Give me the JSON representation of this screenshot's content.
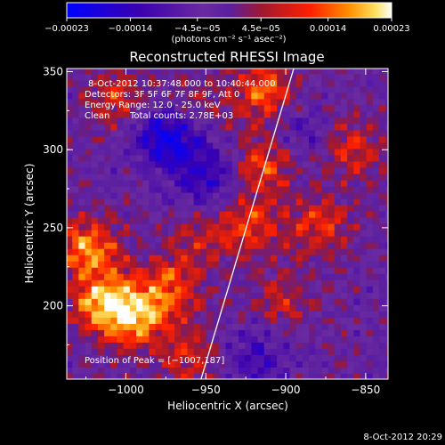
{
  "chart_data": {
    "type": "heatmap",
    "title": "Reconstructed RHESSI Image",
    "xlabel": "Heliocentric X (arcsec)",
    "ylabel": "Heliocentric Y (arcsec)",
    "xlim": [
      -1037,
      -836
    ],
    "ylim": [
      153,
      352
    ],
    "x_ticks": [
      -1000,
      -950,
      -900,
      -850
    ],
    "x_tick_labels": [
      "−1000",
      "−950",
      "−900",
      "−850"
    ],
    "y_ticks": [
      200,
      250,
      300,
      350
    ],
    "y_tick_labels": [
      "200",
      "250",
      "300",
      "350"
    ],
    "colorbar": {
      "min": -0.00023,
      "max": 0.00023,
      "ticks": [
        -0.00023,
        -0.00014,
        -4.5e-05,
        4.5e-05,
        0.00014,
        0.00023
      ],
      "tick_labels": [
        "−0.00023",
        "−0.00014",
        "−4.5e−05",
        "4.5e−05",
        "0.00014",
        "0.00023"
      ],
      "unit_label": "(photons cm⁻² s⁻¹ asec⁻²)"
    },
    "annotations": [
      "8-Oct-2012 10:37:48.000 to 10:40:44.000",
      "Detectors: 3F 5F 6F 7F 8F 9F, Att 0",
      "Energy Range: 12.0 - 25.0 keV",
      "Clean",
      "Total counts: 2.78E+03"
    ],
    "peak_label": "Position of Peak = [−1007,187]",
    "peak_position": [
      -1007,
      187
    ],
    "limb_line": [
      [
        -953,
        153
      ],
      [
        -895,
        352
      ]
    ],
    "hot_regions": [
      {
        "x": -1015,
        "y": 200,
        "value": 0.0002
      },
      {
        "x": -1025,
        "y": 235,
        "value": 0.00018
      },
      {
        "x": -995,
        "y": 190,
        "value": 0.00016
      },
      {
        "x": -975,
        "y": 210,
        "value": 0.00014
      },
      {
        "x": -1005,
        "y": 330,
        "value": 0.00012
      },
      {
        "x": -960,
        "y": 325,
        "value": 0.0001
      },
      {
        "x": -915,
        "y": 335,
        "value": 0.00016
      },
      {
        "x": -915,
        "y": 290,
        "value": 0.00015
      },
      {
        "x": -925,
        "y": 250,
        "value": 0.00013
      },
      {
        "x": -880,
        "y": 250,
        "value": 0.00012
      },
      {
        "x": -860,
        "y": 300,
        "value": 0.00011
      },
      {
        "x": -905,
        "y": 200,
        "value": 9e-05
      },
      {
        "x": -960,
        "y": 165,
        "value": 0.0001
      },
      {
        "x": -955,
        "y": 245,
        "value": 8e-05
      }
    ],
    "cold_regions": [
      {
        "x": -975,
        "y": 310,
        "value": -0.0002
      },
      {
        "x": -950,
        "y": 280,
        "value": -0.00012
      },
      {
        "x": -920,
        "y": 165,
        "value": -0.0001
      },
      {
        "x": -895,
        "y": 310,
        "value": -8e-05
      }
    ]
  },
  "footer_timestamp": "8-Oct-2012 20:29",
  "colors": {
    "background": "#000000",
    "foreground": "#ffffff",
    "limb_line": "#ffffff"
  }
}
